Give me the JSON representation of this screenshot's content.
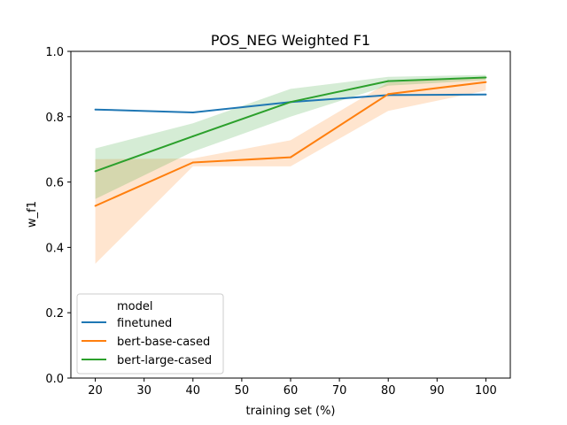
{
  "chart_data": {
    "type": "line",
    "title": "POS_NEG Weighted F1",
    "xlabel": "training set (%)",
    "ylabel": "w_f1",
    "x": [
      20,
      40,
      60,
      80,
      100
    ],
    "xlim": [
      15,
      105
    ],
    "ylim": [
      0.0,
      1.0
    ],
    "xticks": [
      20,
      30,
      40,
      50,
      60,
      70,
      80,
      90,
      100
    ],
    "yticks": [
      0.0,
      0.2,
      0.4,
      0.6,
      0.8,
      1.0
    ],
    "xtick_labels": [
      "20",
      "30",
      "40",
      "50",
      "60",
      "70",
      "80",
      "90",
      "100"
    ],
    "ytick_labels": [
      "0.0",
      "0.2",
      "0.4",
      "0.6",
      "0.8",
      "1.0"
    ],
    "grid": false,
    "legend": {
      "title": "model",
      "placement": "lower-left"
    },
    "series": [
      {
        "name": "finetuned",
        "color": "#1f77b4",
        "values": [
          0.822,
          0.813,
          0.845,
          0.866,
          0.868
        ],
        "ci_low": [
          0.822,
          0.813,
          0.845,
          0.866,
          0.866
        ],
        "ci_high": [
          0.822,
          0.813,
          0.845,
          0.866,
          0.871
        ]
      },
      {
        "name": "bert-base-cased",
        "color": "#ff7f0e",
        "values": [
          0.527,
          0.66,
          0.676,
          0.869,
          0.906
        ],
        "ci_low": [
          0.35,
          0.648,
          0.648,
          0.818,
          0.88
        ],
        "ci_high": [
          0.67,
          0.672,
          0.728,
          0.905,
          0.92
        ]
      },
      {
        "name": "bert-large-cased",
        "color": "#2ca02c",
        "values": [
          0.633,
          0.74,
          0.845,
          0.909,
          0.92
        ],
        "ci_low": [
          0.548,
          0.693,
          0.8,
          0.895,
          0.912
        ],
        "ci_high": [
          0.703,
          0.78,
          0.885,
          0.922,
          0.928
        ]
      }
    ]
  }
}
